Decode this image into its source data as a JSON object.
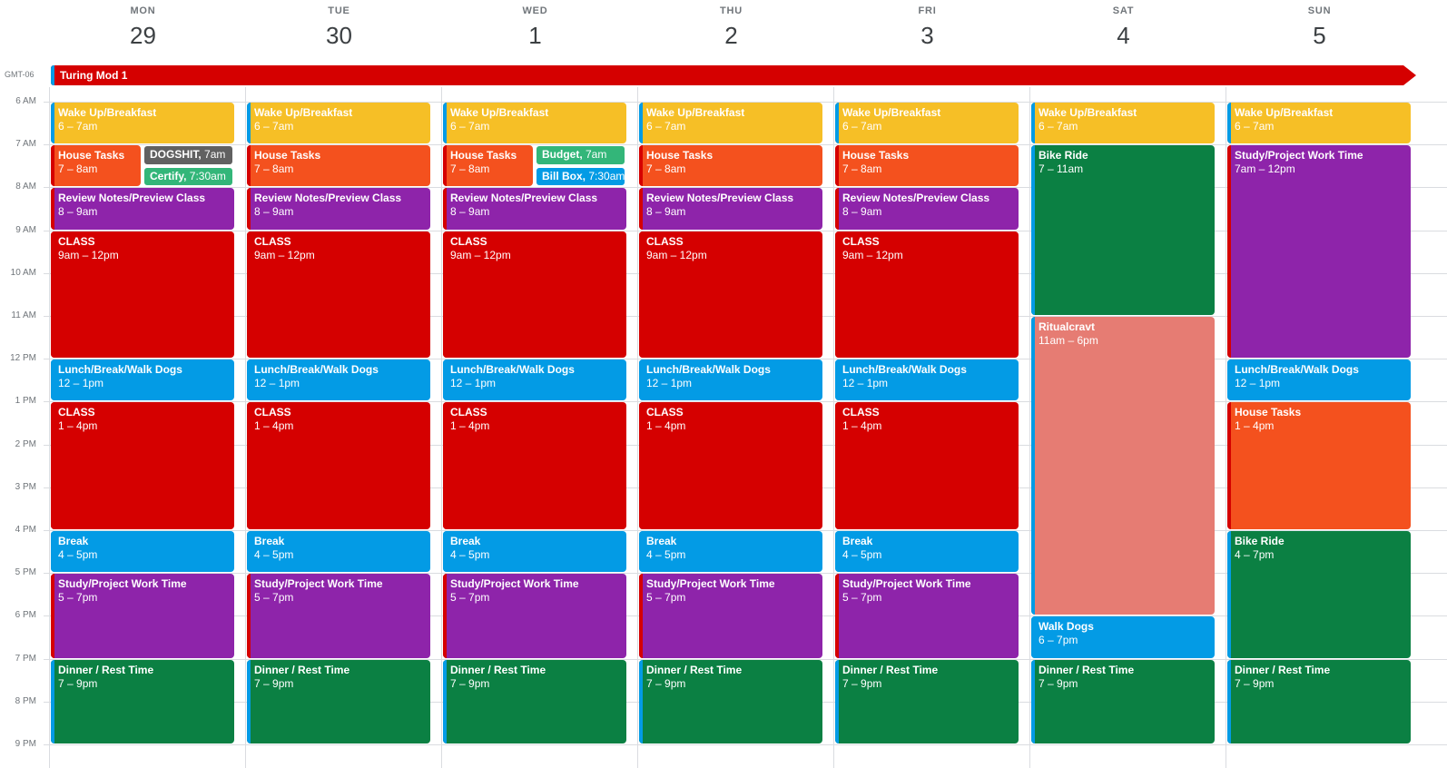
{
  "timezone": "GMT-06",
  "days": [
    {
      "name": "MON",
      "num": "29"
    },
    {
      "name": "TUE",
      "num": "30"
    },
    {
      "name": "WED",
      "num": "1"
    },
    {
      "name": "THU",
      "num": "2"
    },
    {
      "name": "FRI",
      "num": "3"
    },
    {
      "name": "SAT",
      "num": "4"
    },
    {
      "name": "SUN",
      "num": "5"
    }
  ],
  "hours": [
    "6 AM",
    "7 AM",
    "8 AM",
    "9 AM",
    "10 AM",
    "11 AM",
    "12 PM",
    "1 PM",
    "2 PM",
    "3 PM",
    "4 PM",
    "5 PM",
    "6 PM",
    "7 PM",
    "8 PM",
    "9 PM"
  ],
  "all_day_event": {
    "title": "Turing Mod 1",
    "color": "#d50000"
  },
  "colors": {
    "wake": "#f6bf26",
    "house": "#f4511e",
    "review": "#8e24aa",
    "class": "#d50000",
    "lunch": "#039be5",
    "break": "#039be5",
    "study": "#8e24aa",
    "dinner": "#0b8043",
    "bike": "#0b8043",
    "ritual": "#e67c73",
    "walk": "#039be5",
    "dogshit": "#616161",
    "certify": "#33b679",
    "budget": "#33b679",
    "billbox": "#039be5"
  },
  "events": [
    {
      "day": 0,
      "title": "Wake Up/Breakfast",
      "time": "6 – 7am",
      "start": 6,
      "end": 7,
      "color": "#f6bf26",
      "accent": "#039be5"
    },
    {
      "day": 0,
      "title": "House Tasks",
      "time": "7 – 8am",
      "start": 7,
      "end": 8,
      "color": "#f4511e",
      "accent": "#d50000",
      "col": 0,
      "cols": 2
    },
    {
      "day": 0,
      "title": "DOGSHIT",
      "time": "7am",
      "start": 7,
      "end": 7.5,
      "color": "#616161",
      "col": 1,
      "cols": 2,
      "small": true
    },
    {
      "day": 0,
      "title": "Certify",
      "time": "7:30am",
      "start": 7.5,
      "end": 8,
      "color": "#33b679",
      "col": 1,
      "cols": 2,
      "small": true
    },
    {
      "day": 0,
      "title": "Review Notes/Preview Class",
      "time": "8 – 9am",
      "start": 8,
      "end": 9,
      "color": "#8e24aa",
      "accent": "#d50000"
    },
    {
      "day": 0,
      "title": "CLASS",
      "time": "9am – 12pm",
      "start": 9,
      "end": 12,
      "color": "#d50000",
      "accent": "#d50000"
    },
    {
      "day": 0,
      "title": "Lunch/Break/Walk Dogs",
      "time": "12 – 1pm",
      "start": 12,
      "end": 13,
      "color": "#039be5",
      "accent": "#039be5"
    },
    {
      "day": 0,
      "title": "CLASS",
      "time": "1 – 4pm",
      "start": 13,
      "end": 16,
      "color": "#d50000",
      "accent": "#d50000"
    },
    {
      "day": 0,
      "title": "Break",
      "time": "4 – 5pm",
      "start": 16,
      "end": 17,
      "color": "#039be5",
      "accent": "#039be5"
    },
    {
      "day": 0,
      "title": "Study/Project Work Time",
      "time": "5 – 7pm",
      "start": 17,
      "end": 19,
      "color": "#8e24aa",
      "accent": "#d50000"
    },
    {
      "day": 0,
      "title": "Dinner / Rest Time",
      "time": "7 – 9pm",
      "start": 19,
      "end": 21,
      "color": "#0b8043",
      "accent": "#039be5"
    },
    {
      "day": 1,
      "title": "Wake Up/Breakfast",
      "time": "6 – 7am",
      "start": 6,
      "end": 7,
      "color": "#f6bf26",
      "accent": "#039be5"
    },
    {
      "day": 1,
      "title": "House Tasks",
      "time": "7 – 8am",
      "start": 7,
      "end": 8,
      "color": "#f4511e",
      "accent": "#d50000"
    },
    {
      "day": 1,
      "title": "Review Notes/Preview Class",
      "time": "8 – 9am",
      "start": 8,
      "end": 9,
      "color": "#8e24aa",
      "accent": "#d50000"
    },
    {
      "day": 1,
      "title": "CLASS",
      "time": "9am – 12pm",
      "start": 9,
      "end": 12,
      "color": "#d50000",
      "accent": "#d50000"
    },
    {
      "day": 1,
      "title": "Lunch/Break/Walk Dogs",
      "time": "12 – 1pm",
      "start": 12,
      "end": 13,
      "color": "#039be5",
      "accent": "#039be5"
    },
    {
      "day": 1,
      "title": "CLASS",
      "time": "1 – 4pm",
      "start": 13,
      "end": 16,
      "color": "#d50000",
      "accent": "#d50000"
    },
    {
      "day": 1,
      "title": "Break",
      "time": "4 – 5pm",
      "start": 16,
      "end": 17,
      "color": "#039be5",
      "accent": "#039be5"
    },
    {
      "day": 1,
      "title": "Study/Project Work Time",
      "time": "5 – 7pm",
      "start": 17,
      "end": 19,
      "color": "#8e24aa",
      "accent": "#d50000"
    },
    {
      "day": 1,
      "title": "Dinner / Rest Time",
      "time": "7 – 9pm",
      "start": 19,
      "end": 21,
      "color": "#0b8043",
      "accent": "#039be5"
    },
    {
      "day": 2,
      "title": "Wake Up/Breakfast",
      "time": "6 – 7am",
      "start": 6,
      "end": 7,
      "color": "#f6bf26",
      "accent": "#039be5"
    },
    {
      "day": 2,
      "title": "House Tasks",
      "time": "7 – 8am",
      "start": 7,
      "end": 8,
      "color": "#f4511e",
      "accent": "#d50000",
      "col": 0,
      "cols": 2
    },
    {
      "day": 2,
      "title": "Budget",
      "time": "7am",
      "start": 7,
      "end": 7.5,
      "color": "#33b679",
      "col": 1,
      "cols": 2,
      "small": true
    },
    {
      "day": 2,
      "title": "Bill Box",
      "time": "7:30am",
      "start": 7.5,
      "end": 8,
      "color": "#039be5",
      "col": 1,
      "cols": 2,
      "small": true
    },
    {
      "day": 2,
      "title": "Review Notes/Preview Class",
      "time": "8 – 9am",
      "start": 8,
      "end": 9,
      "color": "#8e24aa",
      "accent": "#d50000"
    },
    {
      "day": 2,
      "title": "CLASS",
      "time": "9am – 12pm",
      "start": 9,
      "end": 12,
      "color": "#d50000",
      "accent": "#d50000"
    },
    {
      "day": 2,
      "title": "Lunch/Break/Walk Dogs",
      "time": "12 – 1pm",
      "start": 12,
      "end": 13,
      "color": "#039be5",
      "accent": "#039be5"
    },
    {
      "day": 2,
      "title": "CLASS",
      "time": "1 – 4pm",
      "start": 13,
      "end": 16,
      "color": "#d50000",
      "accent": "#d50000"
    },
    {
      "day": 2,
      "title": "Break",
      "time": "4 – 5pm",
      "start": 16,
      "end": 17,
      "color": "#039be5",
      "accent": "#039be5"
    },
    {
      "day": 2,
      "title": "Study/Project Work Time",
      "time": "5 – 7pm",
      "start": 17,
      "end": 19,
      "color": "#8e24aa",
      "accent": "#d50000"
    },
    {
      "day": 2,
      "title": "Dinner / Rest Time",
      "time": "7 – 9pm",
      "start": 19,
      "end": 21,
      "color": "#0b8043",
      "accent": "#039be5"
    },
    {
      "day": 3,
      "title": "Wake Up/Breakfast",
      "time": "6 – 7am",
      "start": 6,
      "end": 7,
      "color": "#f6bf26",
      "accent": "#039be5"
    },
    {
      "day": 3,
      "title": "House Tasks",
      "time": "7 – 8am",
      "start": 7,
      "end": 8,
      "color": "#f4511e",
      "accent": "#d50000"
    },
    {
      "day": 3,
      "title": "Review Notes/Preview Class",
      "time": "8 – 9am",
      "start": 8,
      "end": 9,
      "color": "#8e24aa",
      "accent": "#d50000"
    },
    {
      "day": 3,
      "title": "CLASS",
      "time": "9am – 12pm",
      "start": 9,
      "end": 12,
      "color": "#d50000",
      "accent": "#d50000"
    },
    {
      "day": 3,
      "title": "Lunch/Break/Walk Dogs",
      "time": "12 – 1pm",
      "start": 12,
      "end": 13,
      "color": "#039be5",
      "accent": "#039be5"
    },
    {
      "day": 3,
      "title": "CLASS",
      "time": "1 – 4pm",
      "start": 13,
      "end": 16,
      "color": "#d50000",
      "accent": "#d50000"
    },
    {
      "day": 3,
      "title": "Break",
      "time": "4 – 5pm",
      "start": 16,
      "end": 17,
      "color": "#039be5",
      "accent": "#039be5"
    },
    {
      "day": 3,
      "title": "Study/Project Work Time",
      "time": "5 – 7pm",
      "start": 17,
      "end": 19,
      "color": "#8e24aa",
      "accent": "#d50000"
    },
    {
      "day": 3,
      "title": "Dinner / Rest Time",
      "time": "7 – 9pm",
      "start": 19,
      "end": 21,
      "color": "#0b8043",
      "accent": "#039be5"
    },
    {
      "day": 4,
      "title": "Wake Up/Breakfast",
      "time": "6 – 7am",
      "start": 6,
      "end": 7,
      "color": "#f6bf26",
      "accent": "#039be5"
    },
    {
      "day": 4,
      "title": "House Tasks",
      "time": "7 – 8am",
      "start": 7,
      "end": 8,
      "color": "#f4511e",
      "accent": "#d50000"
    },
    {
      "day": 4,
      "title": "Review Notes/Preview Class",
      "time": "8 – 9am",
      "start": 8,
      "end": 9,
      "color": "#8e24aa",
      "accent": "#d50000"
    },
    {
      "day": 4,
      "title": "CLASS",
      "time": "9am – 12pm",
      "start": 9,
      "end": 12,
      "color": "#d50000",
      "accent": "#d50000"
    },
    {
      "day": 4,
      "title": "Lunch/Break/Walk Dogs",
      "time": "12 – 1pm",
      "start": 12,
      "end": 13,
      "color": "#039be5",
      "accent": "#039be5"
    },
    {
      "day": 4,
      "title": "CLASS",
      "time": "1 – 4pm",
      "start": 13,
      "end": 16,
      "color": "#d50000",
      "accent": "#d50000"
    },
    {
      "day": 4,
      "title": "Break",
      "time": "4 – 5pm",
      "start": 16,
      "end": 17,
      "color": "#039be5",
      "accent": "#039be5"
    },
    {
      "day": 4,
      "title": "Study/Project Work Time",
      "time": "5 – 7pm",
      "start": 17,
      "end": 19,
      "color": "#8e24aa",
      "accent": "#d50000"
    },
    {
      "day": 4,
      "title": "Dinner / Rest Time",
      "time": "7 – 9pm",
      "start": 19,
      "end": 21,
      "color": "#0b8043",
      "accent": "#039be5"
    },
    {
      "day": 5,
      "title": "Wake Up/Breakfast",
      "time": "6 – 7am",
      "start": 6,
      "end": 7,
      "color": "#f6bf26",
      "accent": "#039be5"
    },
    {
      "day": 5,
      "title": "Bike Ride",
      "time": "7 – 11am",
      "start": 7,
      "end": 11,
      "color": "#0b8043",
      "accent": "#039be5"
    },
    {
      "day": 5,
      "title": "Ritualcravt",
      "time": "11am – 6pm",
      "start": 11,
      "end": 18,
      "color": "#e67c73",
      "accent": "#039be5"
    },
    {
      "day": 5,
      "title": "Walk Dogs",
      "time": "6 – 7pm",
      "start": 18,
      "end": 19,
      "color": "#039be5",
      "accent": "#039be5"
    },
    {
      "day": 5,
      "title": "Dinner / Rest Time",
      "time": "7 – 9pm",
      "start": 19,
      "end": 21,
      "color": "#0b8043",
      "accent": "#039be5"
    },
    {
      "day": 6,
      "title": "Wake Up/Breakfast",
      "time": "6 – 7am",
      "start": 6,
      "end": 7,
      "color": "#f6bf26",
      "accent": "#039be5"
    },
    {
      "day": 6,
      "title": "Study/Project Work Time",
      "time": "7am – 12pm",
      "start": 7,
      "end": 12,
      "color": "#8e24aa",
      "accent": "#d50000"
    },
    {
      "day": 6,
      "title": "Lunch/Break/Walk Dogs",
      "time": "12 – 1pm",
      "start": 12,
      "end": 13,
      "color": "#039be5",
      "accent": "#039be5"
    },
    {
      "day": 6,
      "title": "House Tasks",
      "time": "1 – 4pm",
      "start": 13,
      "end": 16,
      "color": "#f4511e",
      "accent": "#d50000"
    },
    {
      "day": 6,
      "title": "Bike Ride",
      "time": "4 – 7pm",
      "start": 16,
      "end": 19,
      "color": "#0b8043",
      "accent": "#039be5"
    },
    {
      "day": 6,
      "title": "Dinner / Rest Time",
      "time": "7 – 9pm",
      "start": 19,
      "end": 21,
      "color": "#0b8043",
      "accent": "#039be5"
    }
  ]
}
